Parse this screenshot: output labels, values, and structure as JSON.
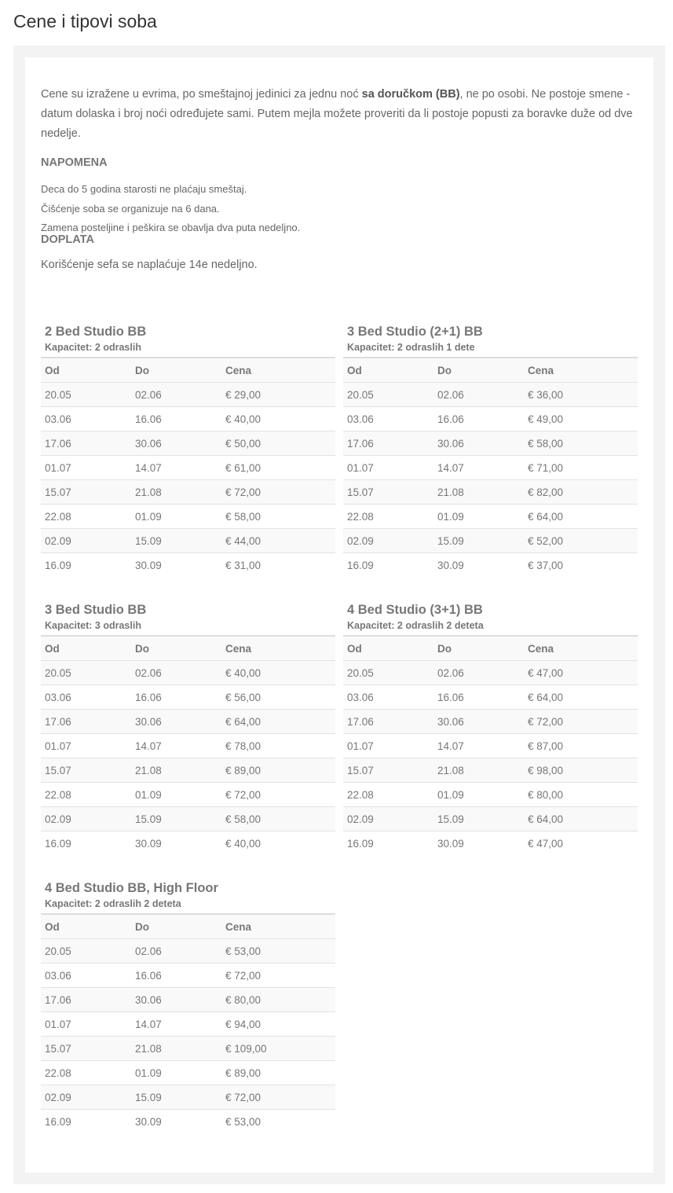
{
  "page_title": "Cene i tipovi soba",
  "intro": {
    "before": "Cene su izražene u evrima, po smeštajnoj jedinici za jednu noć ",
    "bold": "sa doručkom (BB)",
    "after": ", ne po osobi. Ne postoje smene - datum dolaska i broj noći određujete sami. Putem mejla možete proveriti da li postoje popusti za boravke duže od dve nedelje."
  },
  "napomena": {
    "heading": "NAPOMENA",
    "lines": [
      "Deca do 5 godina starosti ne plaćaju smeštaj.",
      "Čišćenje soba se organizuje na 6 dana.",
      "Zamena posteljine i peškira se obavlja dva puta nedeljno."
    ]
  },
  "doplata": {
    "heading": "DOPLATA",
    "text": "Korišćenje sefa se naplaćuje 14e nedeljno."
  },
  "columns": [
    "Od",
    "Do",
    "Cena"
  ],
  "rooms": [
    {
      "title": "2 Bed Studio BB",
      "capacity": "Kapacitet: 2 odraslih",
      "rows": [
        [
          "20.05",
          "02.06",
          "€ 29,00"
        ],
        [
          "03.06",
          "16.06",
          "€ 40,00"
        ],
        [
          "17.06",
          "30.06",
          "€ 50,00"
        ],
        [
          "01.07",
          "14.07",
          "€ 61,00"
        ],
        [
          "15.07",
          "21.08",
          "€ 72,00"
        ],
        [
          "22.08",
          "01.09",
          "€ 58,00"
        ],
        [
          "02.09",
          "15.09",
          "€ 44,00"
        ],
        [
          "16.09",
          "30.09",
          "€ 31,00"
        ]
      ]
    },
    {
      "title": "3 Bed Studio (2+1) BB",
      "capacity": "Kapacitet: 2 odraslih 1 dete",
      "rows": [
        [
          "20.05",
          "02.06",
          "€ 36,00"
        ],
        [
          "03.06",
          "16.06",
          "€ 49,00"
        ],
        [
          "17.06",
          "30.06",
          "€ 58,00"
        ],
        [
          "01.07",
          "14.07",
          "€ 71,00"
        ],
        [
          "15.07",
          "21.08",
          "€ 82,00"
        ],
        [
          "22.08",
          "01.09",
          "€ 64,00"
        ],
        [
          "02.09",
          "15.09",
          "€ 52,00"
        ],
        [
          "16.09",
          "30.09",
          "€ 37,00"
        ]
      ]
    },
    {
      "title": "3 Bed Studio BB",
      "capacity": "Kapacitet: 3 odraslih",
      "rows": [
        [
          "20.05",
          "02.06",
          "€ 40,00"
        ],
        [
          "03.06",
          "16.06",
          "€ 56,00"
        ],
        [
          "17.06",
          "30.06",
          "€ 64,00"
        ],
        [
          "01.07",
          "14.07",
          "€ 78,00"
        ],
        [
          "15.07",
          "21.08",
          "€ 89,00"
        ],
        [
          "22.08",
          "01.09",
          "€ 72,00"
        ],
        [
          "02.09",
          "15.09",
          "€ 58,00"
        ],
        [
          "16.09",
          "30.09",
          "€ 40,00"
        ]
      ]
    },
    {
      "title": "4 Bed Studio (3+1) BB",
      "capacity": "Kapacitet: 2 odraslih 2 deteta",
      "rows": [
        [
          "20.05",
          "02.06",
          "€ 47,00"
        ],
        [
          "03.06",
          "16.06",
          "€ 64,00"
        ],
        [
          "17.06",
          "30.06",
          "€ 72,00"
        ],
        [
          "01.07",
          "14.07",
          "€ 87,00"
        ],
        [
          "15.07",
          "21.08",
          "€ 98,00"
        ],
        [
          "22.08",
          "01.09",
          "€ 80,00"
        ],
        [
          "02.09",
          "15.09",
          "€ 64,00"
        ],
        [
          "16.09",
          "30.09",
          "€ 47,00"
        ]
      ]
    },
    {
      "title": "4 Bed Studio BB, High Floor",
      "capacity": "Kapacitet: 2 odraslih 2 deteta",
      "rows": [
        [
          "20.05",
          "02.06",
          "€ 53,00"
        ],
        [
          "03.06",
          "16.06",
          "€ 72,00"
        ],
        [
          "17.06",
          "30.06",
          "€ 80,00"
        ],
        [
          "01.07",
          "14.07",
          "€ 94,00"
        ],
        [
          "15.07",
          "21.08",
          "€ 109,00"
        ],
        [
          "22.08",
          "01.09",
          "€ 89,00"
        ],
        [
          "02.09",
          "15.09",
          "€ 72,00"
        ],
        [
          "16.09",
          "30.09",
          "€ 53,00"
        ]
      ]
    }
  ]
}
